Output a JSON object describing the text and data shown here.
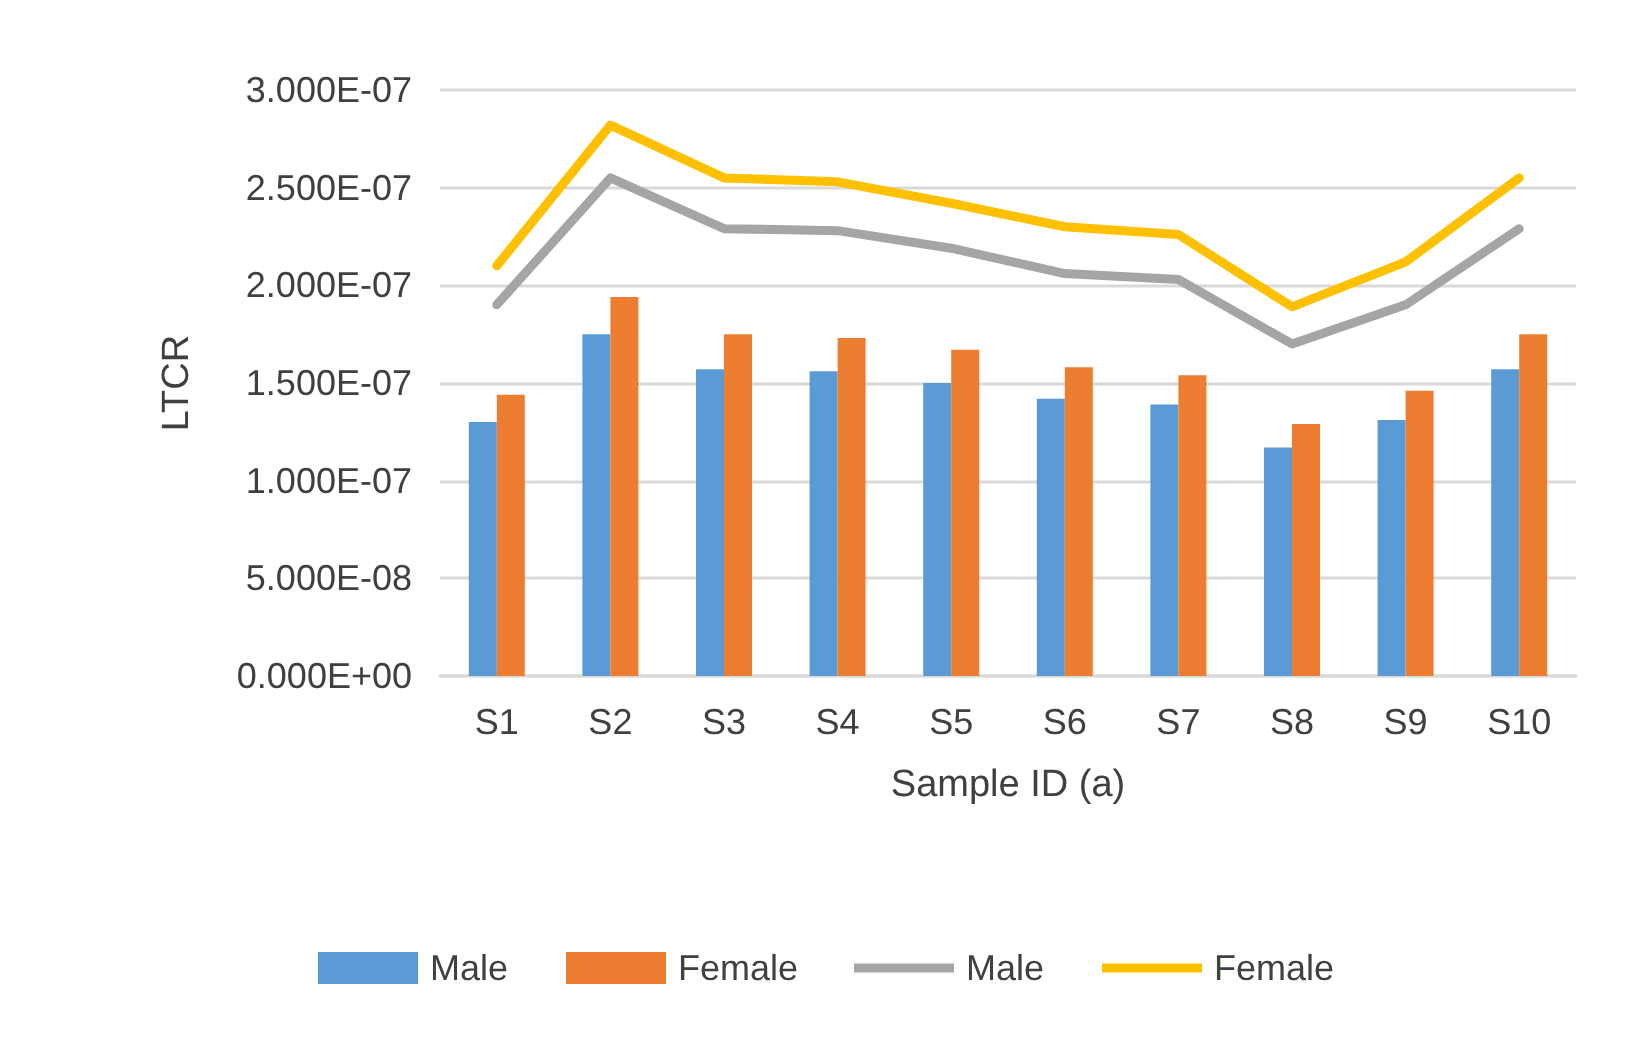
{
  "chart_data": {
    "type": "bar",
    "xlabel": "Sample ID (a)",
    "ylabel": "LTCR",
    "categories": [
      "S1",
      "S2",
      "S3",
      "S4",
      "S5",
      "S6",
      "S7",
      "S8",
      "S9",
      "S10"
    ],
    "series": [
      {
        "name": "Male",
        "color": "#5b9bd5",
        "values": [
          1.3e-07,
          1.75e-07,
          1.57e-07,
          1.56e-07,
          1.5e-07,
          1.42e-07,
          1.39e-07,
          1.17e-07,
          1.31e-07,
          1.57e-07
        ]
      },
      {
        "name": "Female",
        "color": "#ed7d31",
        "values": [
          1.44e-07,
          1.94e-07,
          1.75e-07,
          1.73e-07,
          1.67e-07,
          1.58e-07,
          1.54e-07,
          1.29e-07,
          1.46e-07,
          1.75e-07
        ]
      },
      {
        "name": "Male",
        "type": "line",
        "color": "#a5a5a5",
        "values": [
          1.9e-07,
          2.55e-07,
          2.29e-07,
          2.28e-07,
          2.19e-07,
          2.06e-07,
          2.03e-07,
          1.7e-07,
          1.9e-07,
          2.29e-07
        ]
      },
      {
        "name": "Female",
        "type": "line",
        "color": "#ffc000",
        "values": [
          2.1e-07,
          2.82e-07,
          2.55e-07,
          2.53e-07,
          2.42e-07,
          2.3e-07,
          2.26e-07,
          1.89e-07,
          2.12e-07,
          2.55e-07
        ]
      }
    ],
    "ylim": [
      0,
      3e-07
    ],
    "yticks": [
      {
        "value": 0,
        "label": "0.000E+00"
      },
      {
        "value": 5e-08,
        "label": "5.000E-08"
      },
      {
        "value": 1e-07,
        "label": "1.000E-07"
      },
      {
        "value": 1.5e-07,
        "label": "1.500E-07"
      },
      {
        "value": 2e-07,
        "label": "2.000E-07"
      },
      {
        "value": 2.5e-07,
        "label": "2.500E-07"
      },
      {
        "value": 3e-07,
        "label": "3.000E-07"
      }
    ],
    "grid": "y",
    "legend": "bottom",
    "marker": "none",
    "line_style": "solid"
  }
}
